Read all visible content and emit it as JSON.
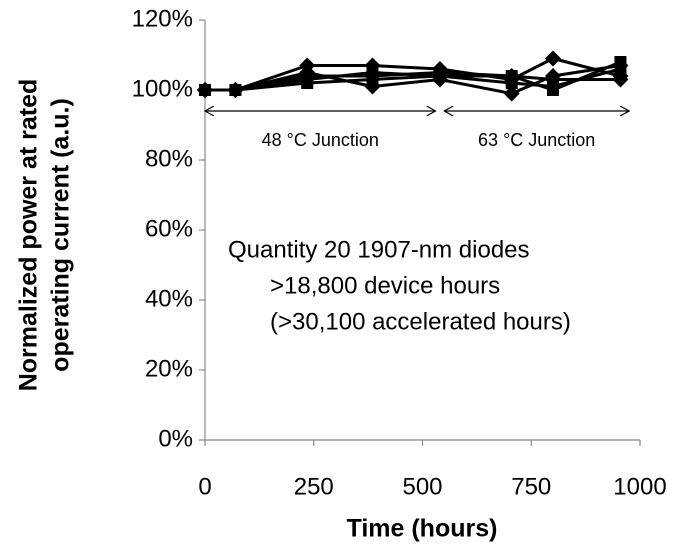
{
  "chart_data": {
    "type": "line",
    "x": [
      0,
      70,
      235,
      385,
      540,
      705,
      800,
      955
    ],
    "series": [
      {
        "color": "#000000",
        "marker": "diamond",
        "values": [
          100,
          100,
          107,
          107,
          106,
          103,
          109,
          104
        ]
      },
      {
        "color": "#000000",
        "marker": "square",
        "values": [
          100,
          100,
          102,
          103,
          104,
          104,
          100,
          108
        ]
      },
      {
        "color": "#000000",
        "marker": "diamond",
        "values": [
          100,
          100,
          105,
          101,
          103,
          99,
          104,
          107
        ]
      },
      {
        "color": "#000000",
        "marker": "square",
        "values": [
          100,
          100,
          103,
          105,
          104,
          102,
          101,
          106
        ]
      },
      {
        "color": "#000000",
        "marker": "diamond",
        "values": [
          100,
          100,
          104,
          104,
          105,
          104,
          103,
          103
        ]
      }
    ],
    "xlim": [
      0,
      1000
    ],
    "xticks": [
      0,
      250,
      500,
      750,
      1000
    ],
    "ylim": [
      0,
      120
    ],
    "yticks": [
      {
        "value": 0,
        "label": "0%"
      },
      {
        "value": 20,
        "label": "20%"
      },
      {
        "value": 40,
        "label": "40%"
      },
      {
        "value": 60,
        "label": "60%"
      },
      {
        "value": 80,
        "label": "80%"
      },
      {
        "value": 100,
        "label": "100%"
      },
      {
        "value": 120,
        "label": "120%"
      }
    ],
    "x_label": "Time (hours)",
    "y_label": [
      "Normalized power at rated",
      "operating current (a.u.)"
    ],
    "annotations": [
      {
        "text": "48 °C Junction",
        "x": [
          0,
          530
        ],
        "y": 94
      },
      {
        "text": "63 °C Junction",
        "x": [
          550,
          975
        ],
        "y": 94
      }
    ],
    "notes": [
      "Quantity 20 1907-nm diodes",
      ">18,800 device hours",
      "(>30,100 accelerated hours)"
    ],
    "grid": false
  }
}
